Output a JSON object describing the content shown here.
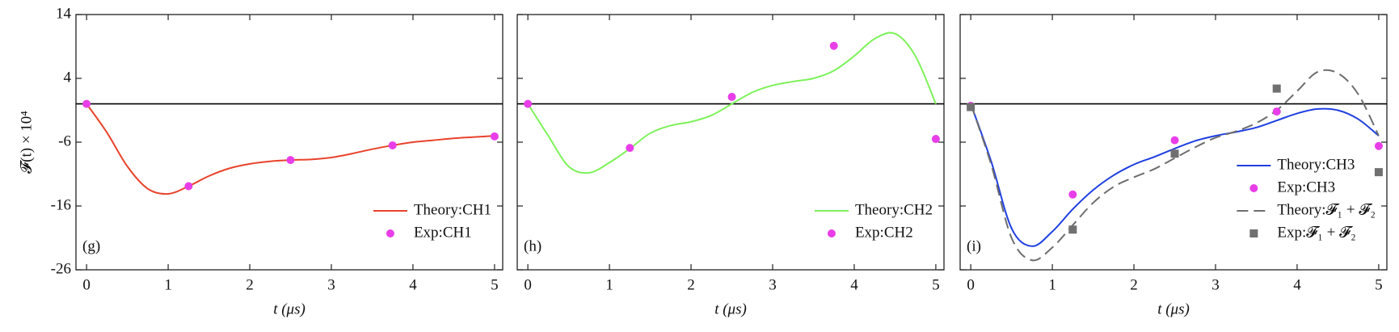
{
  "chart_data": [
    {
      "type": "line",
      "panel_label": "(g)",
      "ylabel": "𝓕(t) × 10⁴",
      "xlabel": "t  (μs)",
      "xlim": [
        -0.13,
        5.1
      ],
      "ylim": [
        -26,
        14
      ],
      "xticks": [
        0,
        1,
        2,
        3,
        4,
        5
      ],
      "yticks": [
        -26,
        -16,
        -6,
        4,
        14
      ],
      "show_yticklabels": true,
      "reference_line": 0,
      "series": [
        {
          "name": "Theory:CH1",
          "style": "line",
          "color": "#e8432b",
          "x": [
            0,
            0.25,
            0.5,
            0.75,
            1,
            1.25,
            1.5,
            1.75,
            2,
            2.25,
            2.5,
            2.75,
            3,
            3.25,
            3.5,
            3.75,
            4,
            4.25,
            4.5,
            4.75,
            5
          ],
          "values": [
            0,
            -4.5,
            -9.8,
            -13.3,
            -14.1,
            -12.9,
            -11.3,
            -10.1,
            -9.4,
            -9.0,
            -8.8,
            -8.7,
            -8.4,
            -7.8,
            -7.1,
            -6.5,
            -6.0,
            -5.7,
            -5.4,
            -5.2,
            -5.0
          ]
        },
        {
          "name": "Exp:CH1",
          "style": "circle",
          "color": "#e83ee8",
          "x": [
            0,
            1.25,
            2.5,
            3.75,
            5
          ],
          "values": [
            0,
            -12.9,
            -8.8,
            -6.5,
            -5.1
          ]
        }
      ]
    },
    {
      "type": "line",
      "panel_label": "(h)",
      "xlabel": "t  (μs)",
      "xlim": [
        -0.13,
        5.1
      ],
      "ylim": [
        -26,
        14
      ],
      "xticks": [
        0,
        1,
        2,
        3,
        4,
        5
      ],
      "yticks": [
        -26,
        -16,
        -6,
        4,
        14
      ],
      "show_yticklabels": false,
      "reference_line": 0,
      "series": [
        {
          "name": "Theory:CH2",
          "style": "line",
          "color": "#7df25a",
          "x": [
            0,
            0.25,
            0.5,
            0.75,
            1,
            1.25,
            1.5,
            1.75,
            2,
            2.25,
            2.5,
            2.75,
            3,
            3.25,
            3.5,
            3.75,
            4,
            4.25,
            4.5,
            4.75,
            5
          ],
          "values": [
            0,
            -5,
            -9.8,
            -10.8,
            -9.2,
            -7.0,
            -4.6,
            -3.4,
            -2.8,
            -1.8,
            0,
            1.8,
            2.9,
            3.5,
            4.0,
            5.2,
            7.5,
            10.2,
            11.0,
            7.5,
            0
          ]
        },
        {
          "name": "Exp:CH2",
          "style": "circle",
          "color": "#e83ee8",
          "x": [
            0,
            1.25,
            2.5,
            3.75,
            5
          ],
          "values": [
            0,
            -6.9,
            1.1,
            9.1,
            -5.5
          ]
        }
      ]
    },
    {
      "type": "line",
      "panel_label": "(i)",
      "xlabel": "t  (μs)",
      "xlim": [
        -0.13,
        5.1
      ],
      "ylim": [
        -26,
        14
      ],
      "xticks": [
        0,
        1,
        2,
        3,
        4,
        5
      ],
      "yticks": [
        -26,
        -16,
        -6,
        4,
        14
      ],
      "show_yticklabels": false,
      "reference_line": 0,
      "series": [
        {
          "name": "Theory:CH3",
          "style": "line",
          "color": "#1f3fe0",
          "x": [
            0,
            0.25,
            0.5,
            0.75,
            1,
            1.25,
            1.5,
            1.75,
            2,
            2.25,
            2.5,
            2.75,
            3,
            3.25,
            3.5,
            3.75,
            4,
            4.25,
            4.5,
            4.75,
            5
          ],
          "values": [
            0,
            -9,
            -19.5,
            -22.3,
            -20,
            -16.5,
            -13.5,
            -11.2,
            -9.5,
            -8.3,
            -7.0,
            -5.8,
            -5.0,
            -4.4,
            -3.7,
            -2.6,
            -1.5,
            -0.8,
            -1.0,
            -2.4,
            -5.0
          ]
        },
        {
          "name": "Exp:CH3",
          "style": "circle",
          "color": "#e83ee8",
          "x": [
            0,
            1.25,
            2.5,
            3.75,
            5
          ],
          "values": [
            -0.3,
            -14.2,
            -5.7,
            -1.2,
            -6.6
          ]
        },
        {
          "name": "Theory:𝓕₁ + 𝓕₂",
          "style": "dashed",
          "color": "#6e6e6e",
          "x": [
            0,
            0.25,
            0.5,
            0.75,
            1,
            1.25,
            1.5,
            1.75,
            2,
            2.25,
            2.5,
            2.75,
            3,
            3.25,
            3.5,
            3.75,
            4,
            4.25,
            4.5,
            4.75,
            5
          ],
          "values": [
            0,
            -9.5,
            -21,
            -24.5,
            -22.5,
            -19,
            -15.5,
            -13.0,
            -11.5,
            -10.2,
            -8.5,
            -6.8,
            -5.3,
            -4.3,
            -3.0,
            -1.0,
            2.0,
            5.0,
            4.8,
            1.5,
            -5.0
          ]
        },
        {
          "name": "Exp:𝓕₁ + 𝓕₂",
          "style": "square",
          "color": "#707070",
          "x": [
            0,
            1.25,
            2.5,
            3.75,
            5
          ],
          "values": [
            -0.5,
            -19.7,
            -7.8,
            2.4,
            -10.7
          ]
        }
      ]
    }
  ]
}
